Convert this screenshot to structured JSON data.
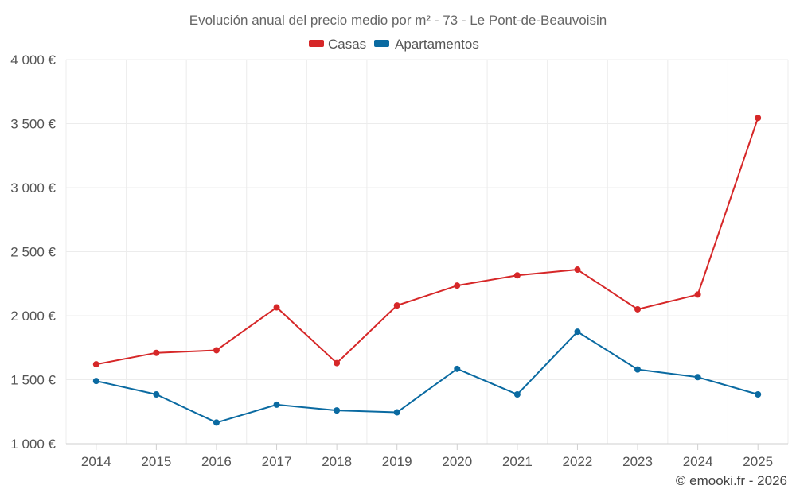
{
  "chart_data": {
    "type": "line",
    "title": "Evolución anual del precio medio por m² - 73 - Le Pont-de-Beauvoisin",
    "categories": [
      "2014",
      "2015",
      "2016",
      "2017",
      "2018",
      "2019",
      "2020",
      "2021",
      "2022",
      "2023",
      "2024",
      "2025"
    ],
    "series": [
      {
        "name": "Casas",
        "color": "#d62728",
        "values": [
          1620,
          1710,
          1730,
          2065,
          1630,
          2080,
          2235,
          2315,
          2360,
          2050,
          2165,
          3545
        ]
      },
      {
        "name": "Apartamentos",
        "color": "#0a6aa1",
        "values": [
          1490,
          1385,
          1165,
          1305,
          1260,
          1245,
          1585,
          1385,
          1875,
          1580,
          1520,
          1385
        ]
      }
    ],
    "ylim": [
      1000,
      4000
    ],
    "yticks": [
      1000,
      1500,
      2000,
      2500,
      3000,
      3500,
      4000
    ],
    "ytick_labels": [
      "1 000 €",
      "1 500 €",
      "2 000 €",
      "2 500 €",
      "3 000 €",
      "3 500 €",
      "4 000 €"
    ],
    "xlabel": "",
    "ylabel": "",
    "legend_position": "top-center",
    "grid": true
  },
  "credit": "© emooki.fr - 2026"
}
